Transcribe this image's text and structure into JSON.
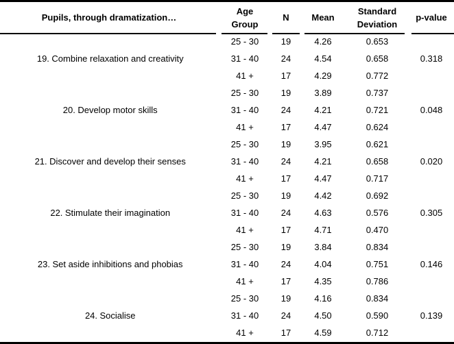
{
  "page": {
    "background": "#ffffff",
    "rule_color": "#000000",
    "text_color": "#000000"
  },
  "table": {
    "title_header": "Pupils, through dramatization…",
    "headers": {
      "age_group": "Age Group",
      "n": "N",
      "mean": "Mean",
      "std_dev": "Standard Deviation",
      "p_value": "p-value"
    },
    "groups": [
      {
        "num": "19.",
        "label": "Combine relaxation and creativity",
        "p_value": "0.318",
        "rows": [
          {
            "age_group": "25 - 30",
            "n": "19",
            "mean": "4.26",
            "std_dev": "0.653"
          },
          {
            "age_group": "31 - 40",
            "n": "24",
            "mean": "4.54",
            "std_dev": "0.658"
          },
          {
            "age_group": "41 +",
            "n": "17",
            "mean": "4.29",
            "std_dev": "0.772"
          }
        ]
      },
      {
        "num": "20.",
        "label": "Develop motor skills",
        "p_value": "0.048",
        "rows": [
          {
            "age_group": "25 - 30",
            "n": "19",
            "mean": "3.89",
            "std_dev": "0.737"
          },
          {
            "age_group": "31 - 40",
            "n": "24",
            "mean": "4.21",
            "std_dev": "0.721"
          },
          {
            "age_group": "41 +",
            "n": "17",
            "mean": "4.47",
            "std_dev": "0.624"
          }
        ]
      },
      {
        "num": "21.",
        "label": "Discover and develop their senses",
        "p_value": "0.020",
        "rows": [
          {
            "age_group": "25 - 30",
            "n": "19",
            "mean": "3.95",
            "std_dev": "0.621"
          },
          {
            "age_group": "31 - 40",
            "n": "24",
            "mean": "4.21",
            "std_dev": "0.658"
          },
          {
            "age_group": "41 +",
            "n": "17",
            "mean": "4.47",
            "std_dev": "0.717"
          }
        ]
      },
      {
        "num": "22.",
        "label": "Stimulate their imagination",
        "p_value": "0.305",
        "rows": [
          {
            "age_group": "25 - 30",
            "n": "19",
            "mean": "4.42",
            "std_dev": "0.692"
          },
          {
            "age_group": "31 - 40",
            "n": "24",
            "mean": "4.63",
            "std_dev": "0.576"
          },
          {
            "age_group": "41 +",
            "n": "17",
            "mean": "4.71",
            "std_dev": "0.470"
          }
        ]
      },
      {
        "num": "23.",
        "label": "Set aside inhibitions and phobias",
        "p_value": "0.146",
        "rows": [
          {
            "age_group": "25 - 30",
            "n": "19",
            "mean": "3.84",
            "std_dev": "0.834"
          },
          {
            "age_group": "31 - 40",
            "n": "24",
            "mean": "4.04",
            "std_dev": "0.751"
          },
          {
            "age_group": "41 +",
            "n": "17",
            "mean": "4.35",
            "std_dev": "0.786"
          }
        ]
      },
      {
        "num": "24.",
        "label": "Socialise",
        "p_value": "0.139",
        "rows": [
          {
            "age_group": "25 - 30",
            "n": "19",
            "mean": "4.16",
            "std_dev": "0.834"
          },
          {
            "age_group": "31 - 40",
            "n": "24",
            "mean": "4.50",
            "std_dev": "0.590"
          },
          {
            "age_group": "41 +",
            "n": "17",
            "mean": "4.59",
            "std_dev": "0.712"
          }
        ]
      }
    ]
  }
}
